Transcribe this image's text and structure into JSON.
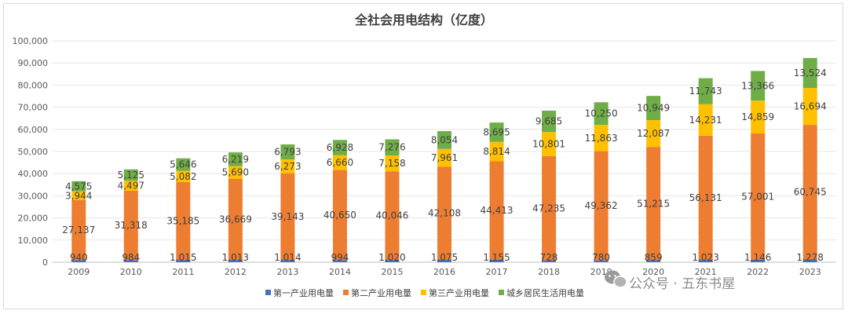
{
  "chart_data": {
    "type": "bar",
    "stacked": true,
    "title": "全社会用电结构（亿度）",
    "categories": [
      "2009",
      "2010",
      "2011",
      "2012",
      "2013",
      "2014",
      "2015",
      "2016",
      "2017",
      "2018",
      "2019",
      "2020",
      "2021",
      "2022",
      "2023"
    ],
    "series": [
      {
        "name": "第一产业用电量",
        "color": "#4472c4",
        "values": [
          940,
          984,
          1015,
          1013,
          1014,
          994,
          1020,
          1075,
          1155,
          728,
          780,
          859,
          1023,
          1146,
          1278
        ]
      },
      {
        "name": "第二产业用电量",
        "color": "#ed7d31",
        "values": [
          27137,
          31318,
          35185,
          36669,
          39143,
          40650,
          40046,
          42108,
          44413,
          47235,
          49362,
          51215,
          56131,
          57001,
          60745
        ]
      },
      {
        "name": "第三产业用电量",
        "color": "#ffc000",
        "values": [
          3944,
          4497,
          5082,
          5690,
          6273,
          6660,
          7158,
          7961,
          8814,
          10801,
          11863,
          12087,
          14231,
          14859,
          16694
        ]
      },
      {
        "name": "城乡居民生活用电量",
        "color": "#70ad47",
        "values": [
          4575,
          5125,
          5646,
          6219,
          6793,
          6928,
          7276,
          8054,
          8695,
          9685,
          10250,
          10949,
          11743,
          13366,
          13524
        ]
      }
    ],
    "ylim": [
      0,
      100000
    ],
    "ytick_step": 10000,
    "grid": true,
    "legend": "bottom",
    "data_labels": true
  },
  "watermark": {
    "text": "公众号 · 五东书屋"
  }
}
